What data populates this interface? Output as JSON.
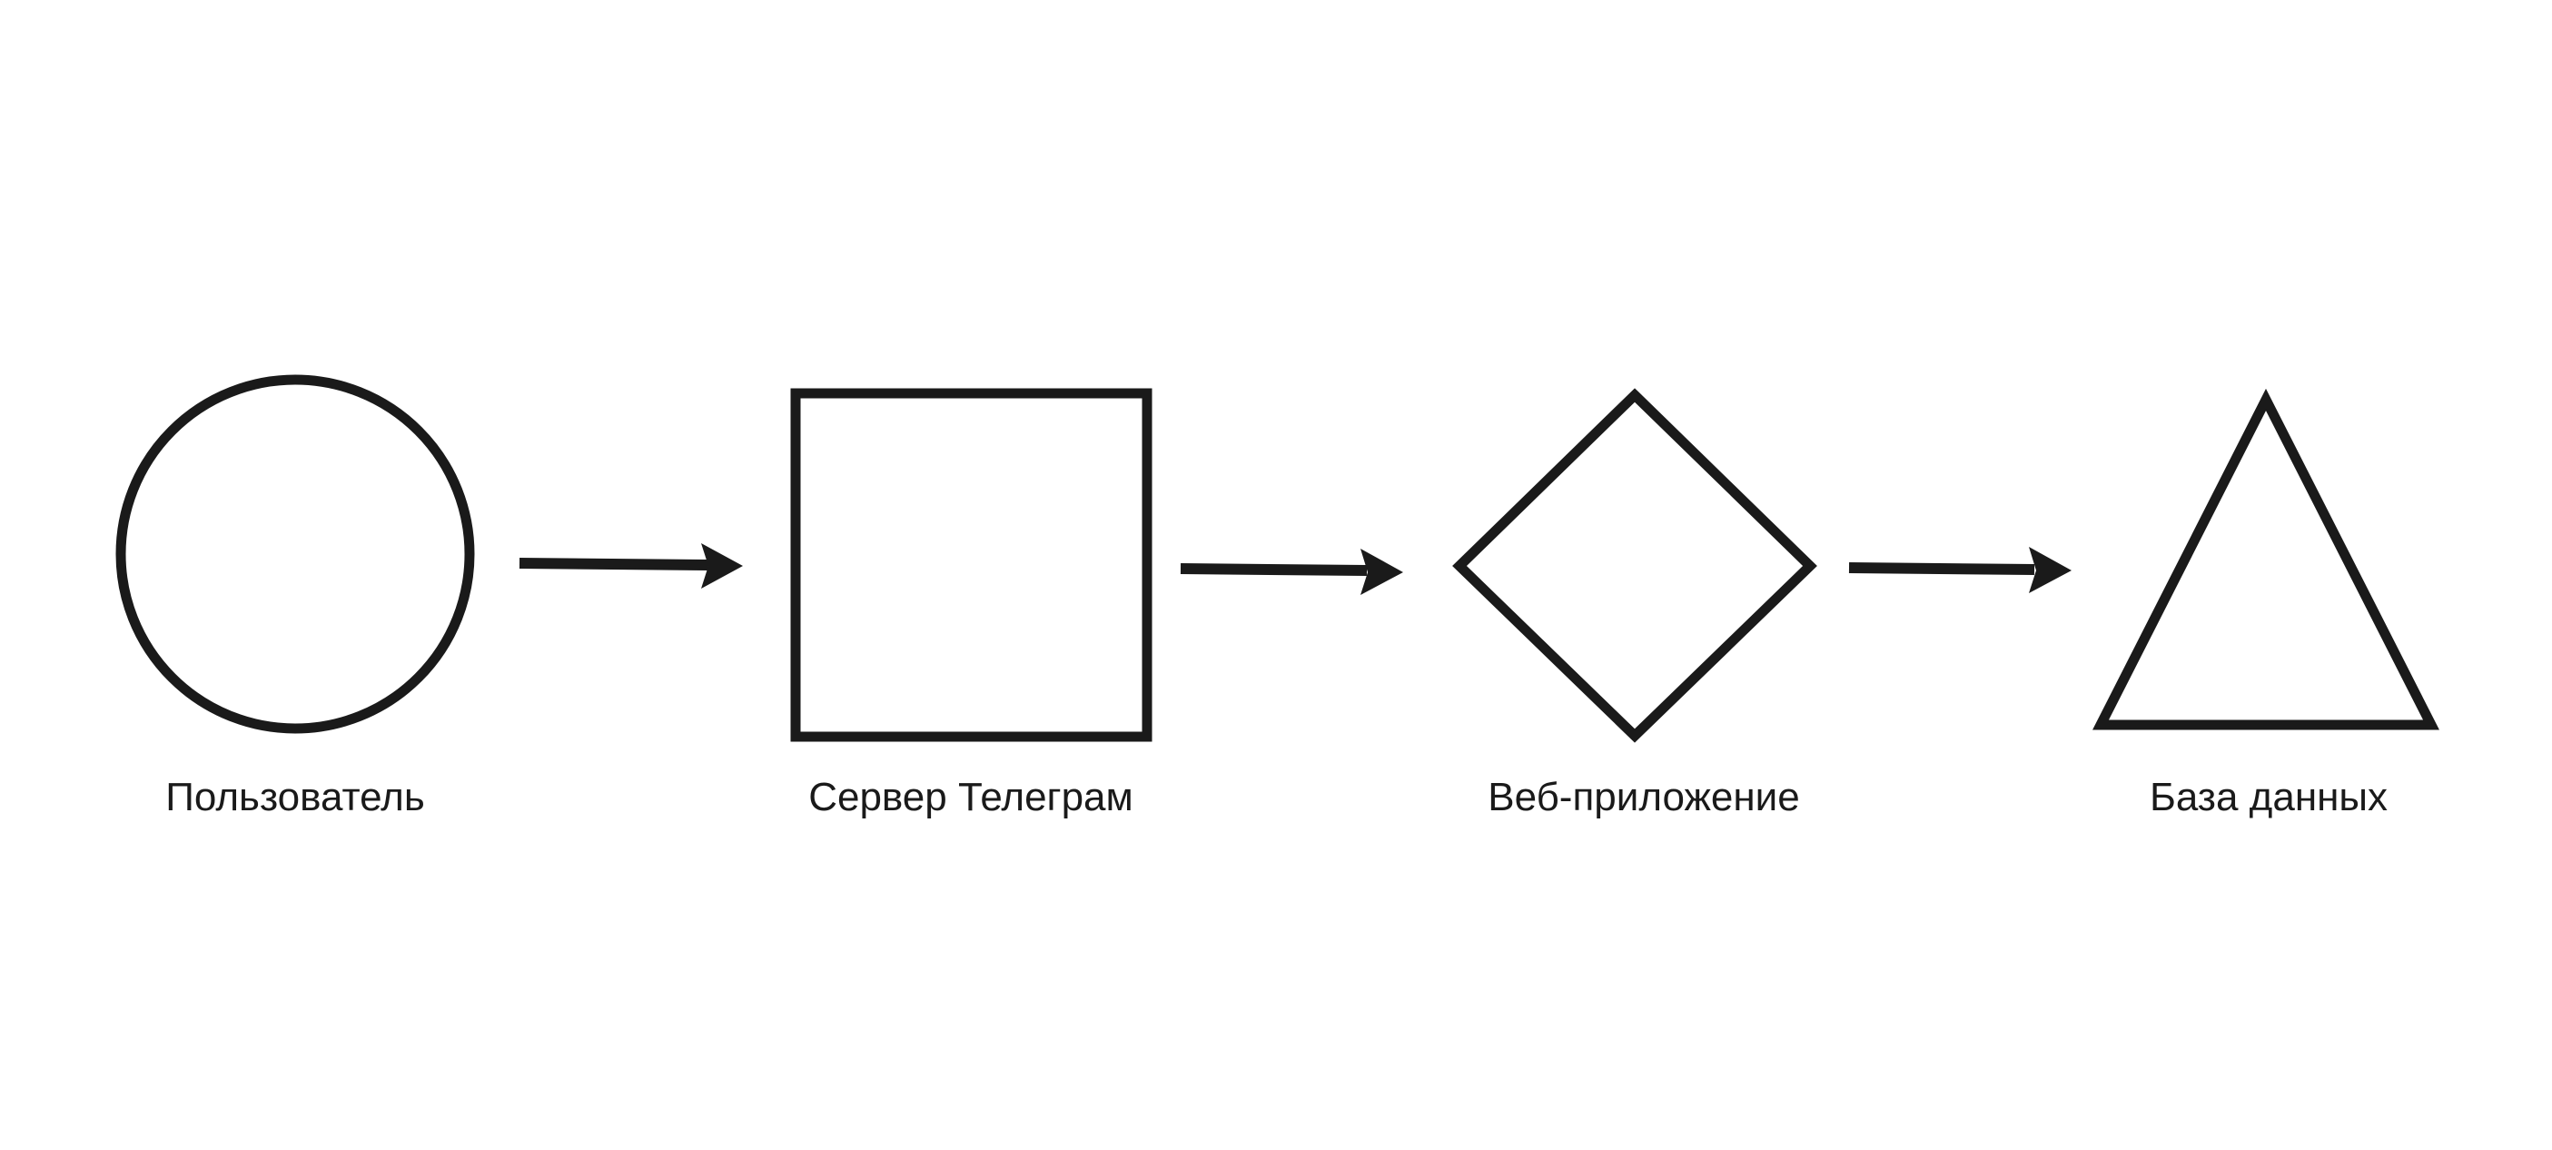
{
  "diagram": {
    "nodes": [
      {
        "id": "user",
        "shape": "circle",
        "label": "Пользователь"
      },
      {
        "id": "telegram-server",
        "shape": "square",
        "label": "Сервер Телеграм"
      },
      {
        "id": "web-app",
        "shape": "diamond",
        "label": "Веб-приложение"
      },
      {
        "id": "database",
        "shape": "triangle",
        "label": "База данных"
      }
    ],
    "edges": [
      {
        "from": "user",
        "to": "telegram-server"
      },
      {
        "from": "telegram-server",
        "to": "web-app"
      },
      {
        "from": "web-app",
        "to": "database"
      }
    ],
    "colors": {
      "stroke": "#1a1a1a",
      "background": "#ffffff"
    }
  }
}
